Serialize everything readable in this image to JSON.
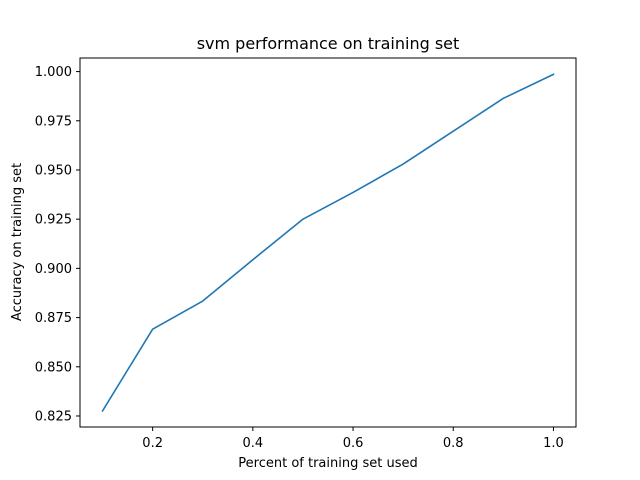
{
  "chart_data": {
    "type": "line",
    "title": "svm performance on training set",
    "xlabel": "Percent of training set used",
    "ylabel": "Accuracy on training set",
    "xlim": [
      0.055,
      1.045
    ],
    "ylim": [
      0.8194,
      1.0069
    ],
    "x_ticks": [
      0.2,
      0.4,
      0.6,
      0.8,
      1.0
    ],
    "x_tick_labels": [
      "0.2",
      "0.4",
      "0.6",
      "0.8",
      "1.0"
    ],
    "y_ticks": [
      0.825,
      0.85,
      0.875,
      0.9,
      0.925,
      0.95,
      0.975,
      1.0
    ],
    "y_tick_labels": [
      "0.825",
      "0.850",
      "0.875",
      "0.900",
      "0.925",
      "0.950",
      "0.975",
      "1.000"
    ],
    "grid": false,
    "series": [
      {
        "x": [
          0.1,
          0.2,
          0.3,
          0.4,
          0.5,
          0.6,
          0.7,
          0.8,
          0.9,
          1.0
        ],
        "y": [
          0.8276,
          0.8691,
          0.8834,
          0.9044,
          0.925,
          0.9386,
          0.953,
          0.9697,
          0.9864,
          0.9986
        ],
        "color": "#1f77b4"
      }
    ]
  }
}
